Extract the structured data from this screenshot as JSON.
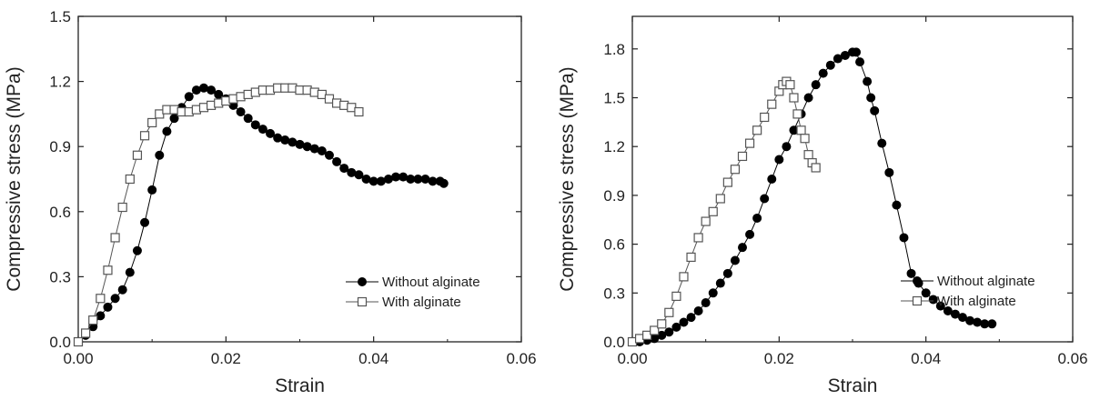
{
  "chart_data": [
    {
      "type": "scatter",
      "title": "",
      "xlabel": "Strain",
      "ylabel": "Compressive stress (MPa)",
      "xlim": [
        0,
        0.06
      ],
      "ylim": [
        0,
        1.5
      ],
      "xticks": [
        "0.00",
        "0.02",
        "0.04",
        "0.06"
      ],
      "yticks": [
        "0.0",
        "0.3",
        "0.6",
        "0.9",
        "1.2",
        "1.5"
      ],
      "legend_position": "right",
      "series": [
        {
          "name": "Without alginate",
          "marker": "filled-circle",
          "color": "#000000",
          "x": [
            0.0,
            0.001,
            0.002,
            0.003,
            0.004,
            0.005,
            0.006,
            0.007,
            0.008,
            0.009,
            0.01,
            0.011,
            0.012,
            0.013,
            0.014,
            0.015,
            0.016,
            0.017,
            0.018,
            0.019,
            0.02,
            0.021,
            0.022,
            0.023,
            0.024,
            0.025,
            0.026,
            0.027,
            0.028,
            0.029,
            0.03,
            0.031,
            0.032,
            0.033,
            0.034,
            0.035,
            0.036,
            0.037,
            0.038,
            0.039,
            0.04,
            0.041,
            0.042,
            0.043,
            0.044,
            0.045,
            0.046,
            0.047,
            0.048,
            0.049,
            0.0495
          ],
          "y": [
            0.0,
            0.03,
            0.07,
            0.12,
            0.16,
            0.2,
            0.24,
            0.32,
            0.42,
            0.55,
            0.7,
            0.86,
            0.97,
            1.03,
            1.08,
            1.13,
            1.16,
            1.17,
            1.16,
            1.14,
            1.12,
            1.09,
            1.06,
            1.03,
            1.0,
            0.98,
            0.96,
            0.94,
            0.93,
            0.92,
            0.91,
            0.9,
            0.89,
            0.88,
            0.86,
            0.83,
            0.8,
            0.78,
            0.77,
            0.75,
            0.74,
            0.74,
            0.75,
            0.76,
            0.76,
            0.75,
            0.75,
            0.75,
            0.74,
            0.74,
            0.73
          ]
        },
        {
          "name": "With alginate",
          "marker": "open-square",
          "color": "#555555",
          "x": [
            0.0,
            0.001,
            0.002,
            0.003,
            0.004,
            0.005,
            0.006,
            0.007,
            0.008,
            0.009,
            0.01,
            0.011,
            0.012,
            0.013,
            0.014,
            0.015,
            0.016,
            0.017,
            0.018,
            0.019,
            0.02,
            0.021,
            0.022,
            0.023,
            0.024,
            0.025,
            0.026,
            0.027,
            0.028,
            0.029,
            0.03,
            0.031,
            0.032,
            0.033,
            0.034,
            0.035,
            0.036,
            0.037,
            0.038
          ],
          "y": [
            0.0,
            0.04,
            0.1,
            0.2,
            0.33,
            0.48,
            0.62,
            0.75,
            0.86,
            0.95,
            1.01,
            1.05,
            1.07,
            1.07,
            1.06,
            1.06,
            1.07,
            1.08,
            1.09,
            1.1,
            1.11,
            1.12,
            1.13,
            1.14,
            1.15,
            1.16,
            1.16,
            1.17,
            1.17,
            1.17,
            1.16,
            1.16,
            1.15,
            1.14,
            1.12,
            1.1,
            1.09,
            1.08,
            1.06
          ]
        }
      ]
    },
    {
      "type": "scatter",
      "title": "",
      "xlabel": "Strain",
      "ylabel": "Compressive stress (MPa)",
      "xlim": [
        0,
        0.06
      ],
      "ylim": [
        0,
        2.0
      ],
      "xticks": [
        "0.00",
        "0.02",
        "0.04",
        "0.06"
      ],
      "yticks": [
        "0.0",
        "0.3",
        "0.6",
        "0.9",
        "1.2",
        "1.5",
        "1.8"
      ],
      "legend_position": "right",
      "series": [
        {
          "name": "Without alginate",
          "marker": "filled-circle",
          "color": "#000000",
          "x": [
            0.0,
            0.001,
            0.002,
            0.003,
            0.004,
            0.005,
            0.006,
            0.007,
            0.008,
            0.009,
            0.01,
            0.011,
            0.012,
            0.013,
            0.014,
            0.015,
            0.016,
            0.017,
            0.018,
            0.019,
            0.02,
            0.021,
            0.022,
            0.023,
            0.024,
            0.025,
            0.026,
            0.027,
            0.028,
            0.029,
            0.03,
            0.0305,
            0.031,
            0.032,
            0.0325,
            0.033,
            0.034,
            0.035,
            0.036,
            0.037,
            0.038,
            0.039,
            0.04,
            0.041,
            0.042,
            0.043,
            0.044,
            0.045,
            0.046,
            0.047,
            0.048,
            0.049
          ],
          "y": [
            0.0,
            0.0,
            0.01,
            0.02,
            0.04,
            0.06,
            0.09,
            0.12,
            0.15,
            0.19,
            0.24,
            0.3,
            0.36,
            0.42,
            0.5,
            0.58,
            0.66,
            0.76,
            0.88,
            1.0,
            1.12,
            1.2,
            1.3,
            1.4,
            1.5,
            1.58,
            1.65,
            1.7,
            1.74,
            1.76,
            1.78,
            1.78,
            1.72,
            1.6,
            1.5,
            1.42,
            1.22,
            1.04,
            0.84,
            0.64,
            0.42,
            0.36,
            0.3,
            0.26,
            0.22,
            0.19,
            0.17,
            0.15,
            0.13,
            0.12,
            0.11,
            0.11
          ]
        },
        {
          "name": "With alginate",
          "marker": "open-square",
          "color": "#555555",
          "x": [
            0.0,
            0.001,
            0.002,
            0.003,
            0.004,
            0.005,
            0.006,
            0.007,
            0.008,
            0.009,
            0.01,
            0.011,
            0.012,
            0.013,
            0.014,
            0.015,
            0.016,
            0.017,
            0.018,
            0.019,
            0.02,
            0.0205,
            0.021,
            0.0215,
            0.022,
            0.0225,
            0.023,
            0.0235,
            0.024,
            0.0245,
            0.025
          ],
          "y": [
            0.0,
            0.02,
            0.04,
            0.07,
            0.11,
            0.18,
            0.28,
            0.4,
            0.52,
            0.64,
            0.74,
            0.8,
            0.88,
            0.98,
            1.06,
            1.14,
            1.22,
            1.3,
            1.38,
            1.46,
            1.54,
            1.58,
            1.6,
            1.58,
            1.5,
            1.4,
            1.3,
            1.25,
            1.15,
            1.1,
            1.07
          ]
        }
      ]
    }
  ]
}
